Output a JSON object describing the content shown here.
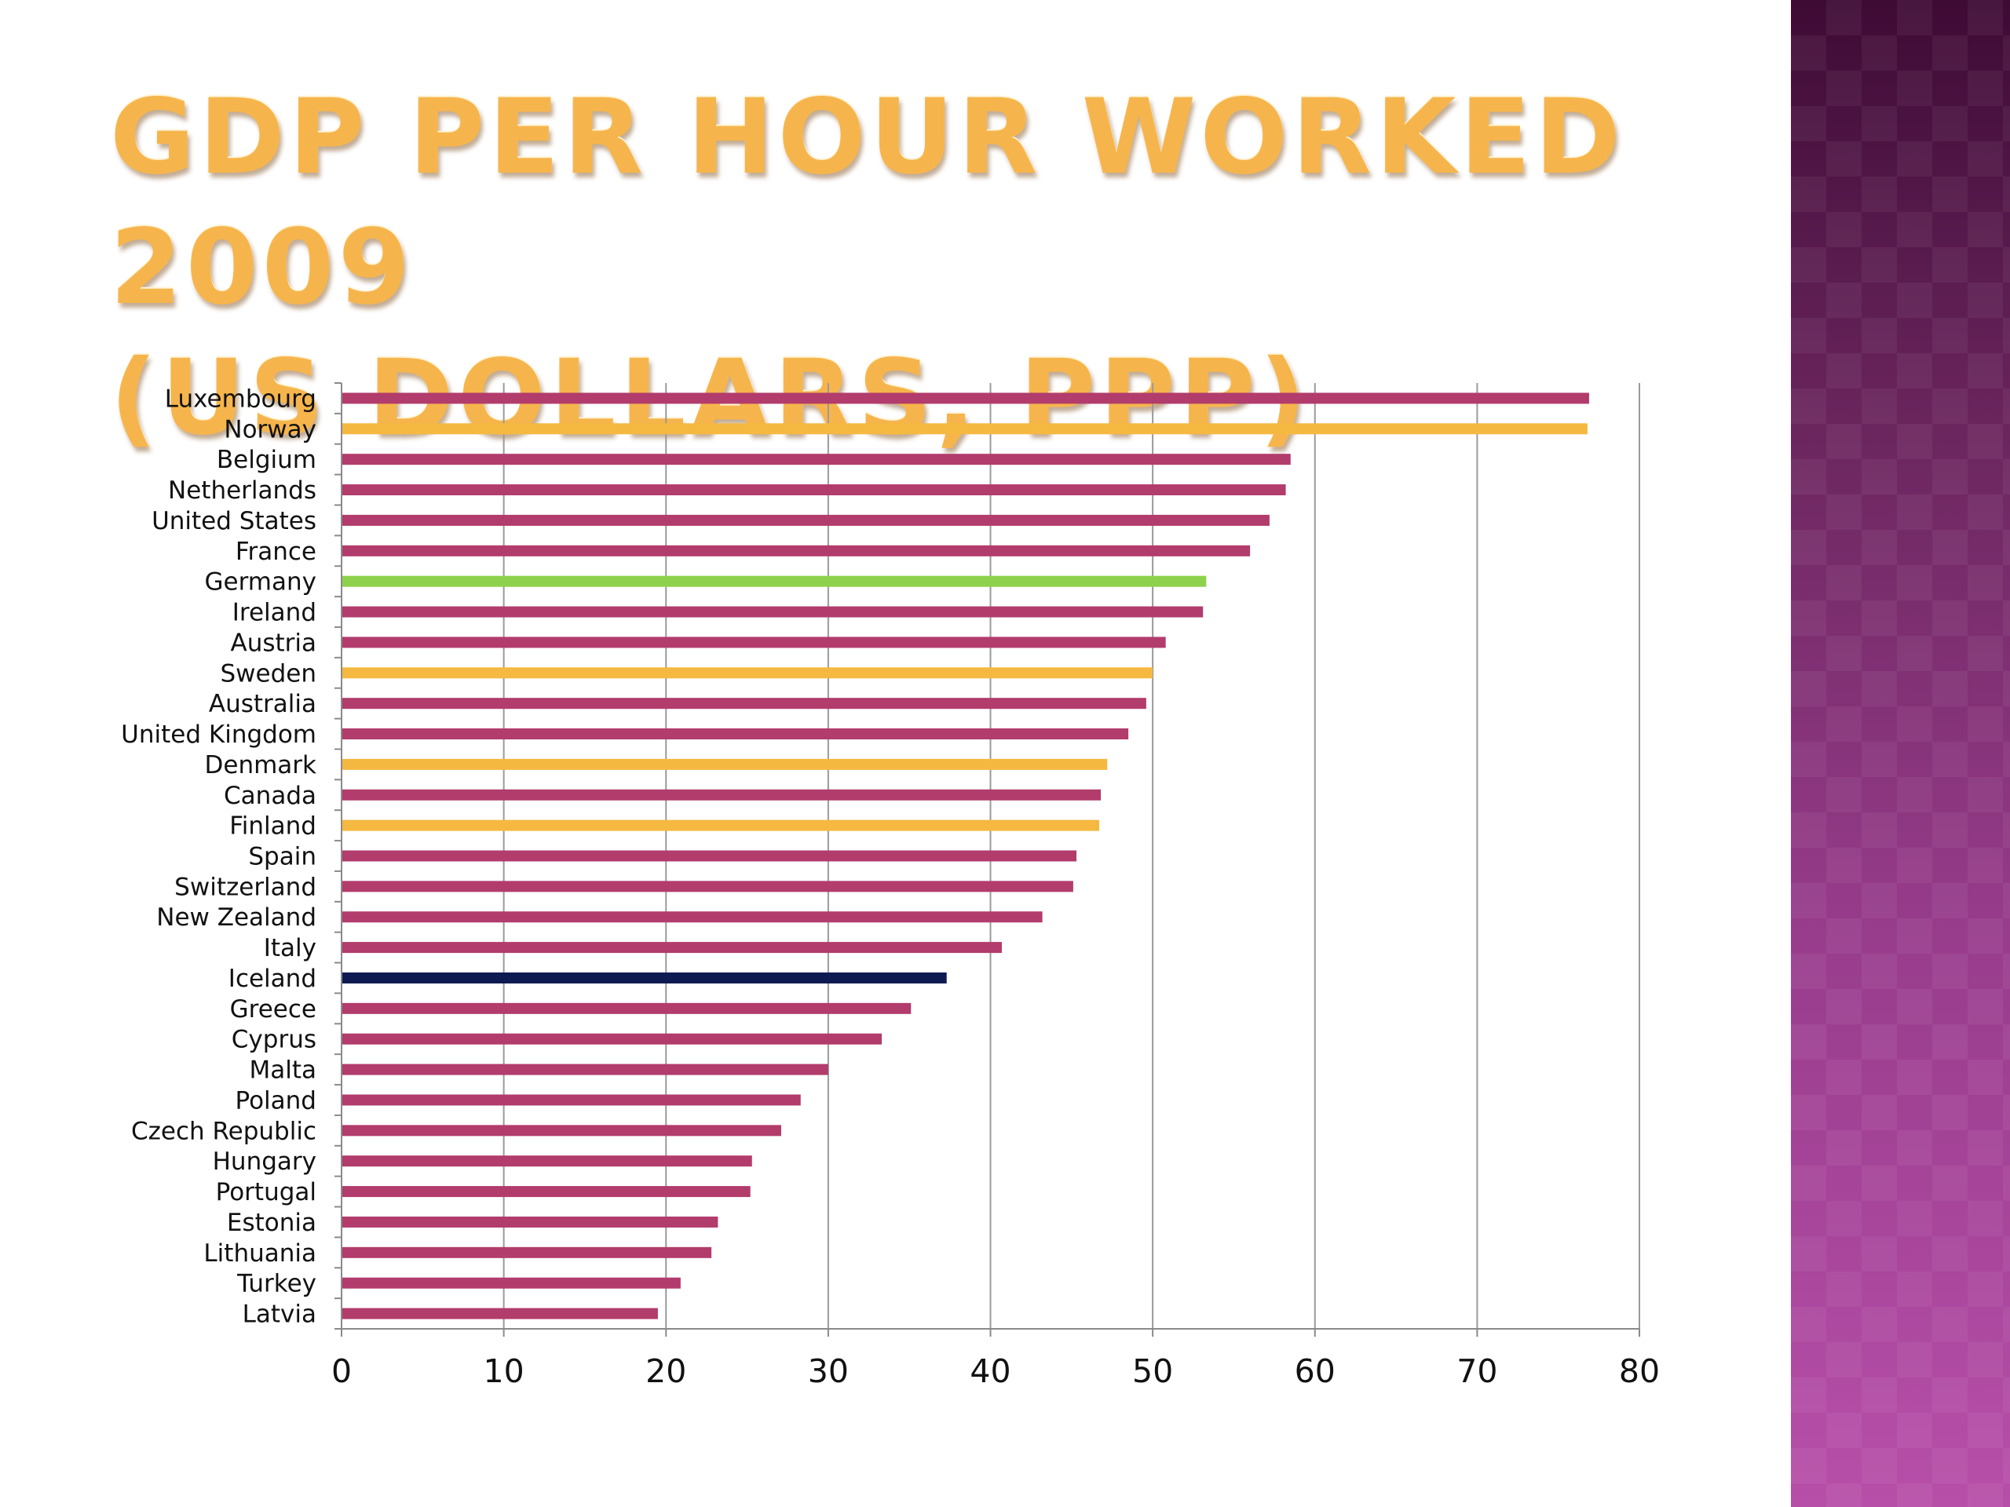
{
  "slide": {
    "title_line1": "GDP per hour worked 2009",
    "title_line2": "(US dollars, PPP)"
  },
  "colors": {
    "default": "#b23c6c",
    "nordic": "#f5b840",
    "germany": "#8dd14c",
    "iceland": "#0e1a52",
    "grid": "#9a9a9a",
    "axis": "#8a8a8a"
  },
  "chart_data": {
    "type": "bar",
    "orientation": "horizontal",
    "title": "GDP per hour worked 2009 (US dollars, PPP)",
    "xlim": [
      0,
      80
    ],
    "xticks": [
      0,
      10,
      20,
      30,
      40,
      50,
      60,
      70,
      80
    ],
    "grid": true,
    "categories": [
      "Luxembourg",
      "Norway",
      "Belgium",
      "Netherlands",
      "United States",
      "France",
      "Germany",
      "Ireland",
      "Austria",
      "Sweden",
      "Australia",
      "United Kingdom",
      "Denmark",
      "Canada",
      "Finland",
      "Spain",
      "Switzerland",
      "New Zealand",
      "Italy",
      "Iceland",
      "Greece",
      "Cyprus",
      "Malta",
      "Poland",
      "Czech Republic",
      "Hungary",
      "Portugal",
      "Estonia",
      "Lithuania",
      "Turkey",
      "Latvia"
    ],
    "values": [
      76.9,
      76.8,
      58.5,
      58.2,
      57.2,
      56.0,
      53.3,
      53.1,
      50.8,
      50.0,
      49.6,
      48.5,
      47.2,
      46.8,
      46.7,
      45.3,
      45.1,
      43.2,
      40.7,
      37.3,
      35.1,
      33.3,
      30.0,
      28.3,
      27.1,
      25.3,
      25.2,
      23.2,
      22.8,
      20.9,
      19.5
    ],
    "bar_colors": [
      "#b23c6c",
      "#f5b840",
      "#b23c6c",
      "#b23c6c",
      "#b23c6c",
      "#b23c6c",
      "#8dd14c",
      "#b23c6c",
      "#b23c6c",
      "#f5b840",
      "#b23c6c",
      "#b23c6c",
      "#f5b840",
      "#b23c6c",
      "#f5b840",
      "#b23c6c",
      "#b23c6c",
      "#b23c6c",
      "#b23c6c",
      "#0e1a52",
      "#b23c6c",
      "#b23c6c",
      "#b23c6c",
      "#b23c6c",
      "#b23c6c",
      "#b23c6c",
      "#b23c6c",
      "#b23c6c",
      "#b23c6c",
      "#b23c6c",
      "#b23c6c"
    ]
  }
}
